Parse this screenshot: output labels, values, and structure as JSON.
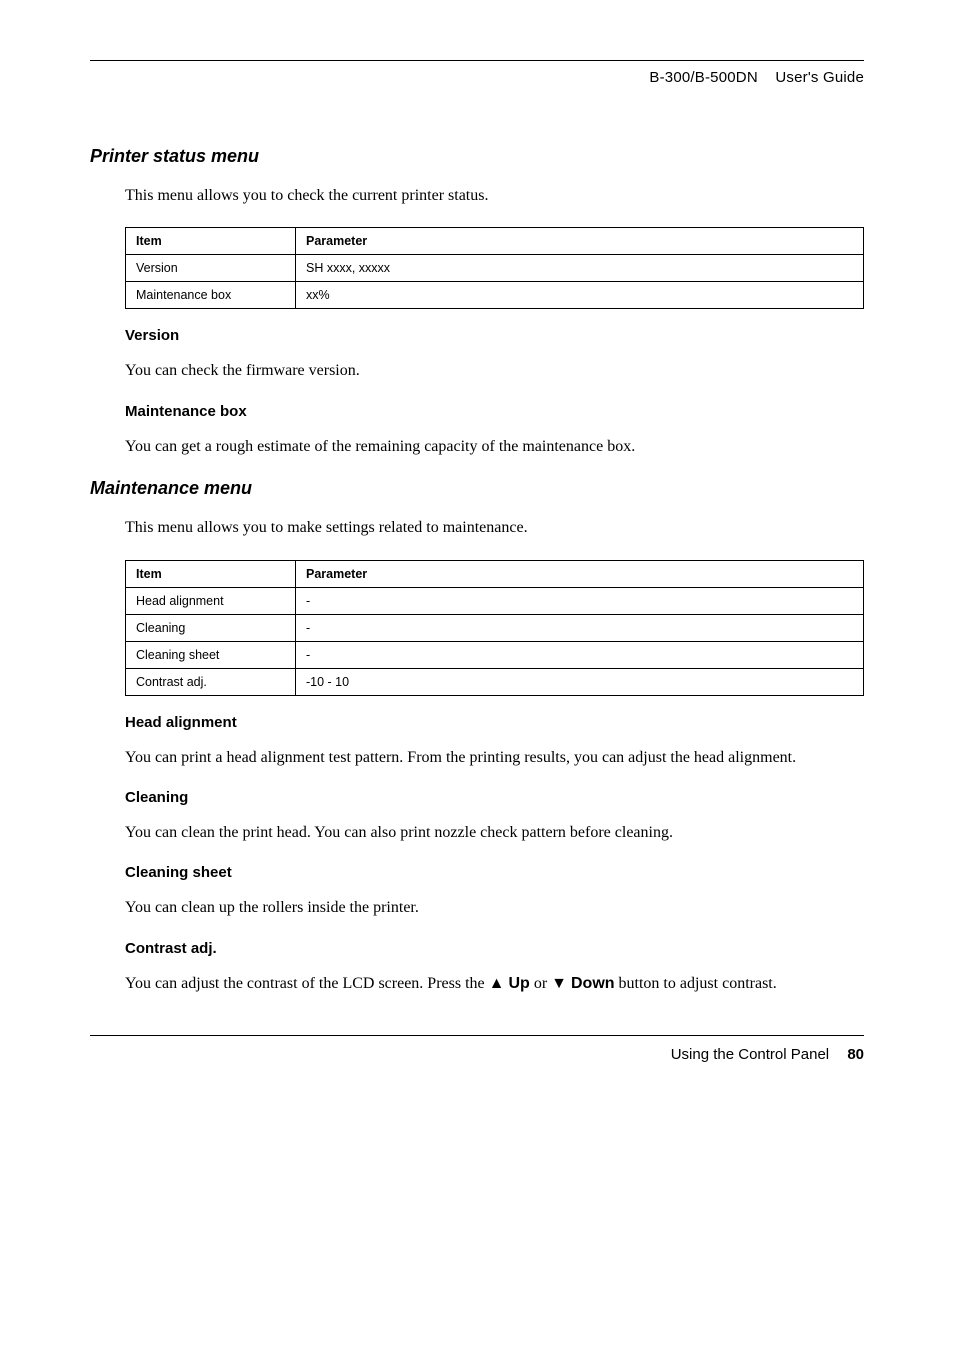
{
  "header": {
    "product": "B-300/B-500DN",
    "doc": "User's Guide"
  },
  "section1": {
    "title": "Printer status menu",
    "intro": "This menu allows you to check the current printer status.",
    "table": {
      "head_item": "Item",
      "head_param": "Parameter",
      "rows": [
        {
          "item": "Version",
          "param": "SH xxxx, xxxxx"
        },
        {
          "item": "Maintenance box",
          "param": "xx%"
        }
      ]
    },
    "sub1_title": "Version",
    "sub1_text": "You can check the firmware version.",
    "sub2_title": "Maintenance box",
    "sub2_text": "You can get a rough estimate of the remaining capacity of the maintenance box."
  },
  "section2": {
    "title": "Maintenance menu",
    "intro": "This menu allows you to make settings related to maintenance.",
    "table": {
      "head_item": "Item",
      "head_param": "Parameter",
      "rows": [
        {
          "item": "Head alignment",
          "param": "-"
        },
        {
          "item": "Cleaning",
          "param": "-"
        },
        {
          "item": "Cleaning sheet",
          "param": "-"
        },
        {
          "item": "Contrast adj.",
          "param": "-10 - 10"
        }
      ]
    },
    "subs": [
      {
        "title": "Head alignment",
        "text": "You can print a head alignment test pattern. From the printing results, you can adjust the head alignment."
      },
      {
        "title": "Cleaning",
        "text": "You can clean the print head. You can also print nozzle check pattern before cleaning."
      },
      {
        "title": "Cleaning sheet",
        "text": "You can clean up the rollers inside the printer."
      },
      {
        "title": "Contrast adj.",
        "text_pre": "You can adjust the contrast of the LCD screen. Press the ",
        "up": "Up",
        "or": " or ",
        "down": "Down",
        "text_post": " button to adjust contrast."
      }
    ]
  },
  "footer": {
    "section": "Using the Control Panel",
    "page": "80"
  }
}
